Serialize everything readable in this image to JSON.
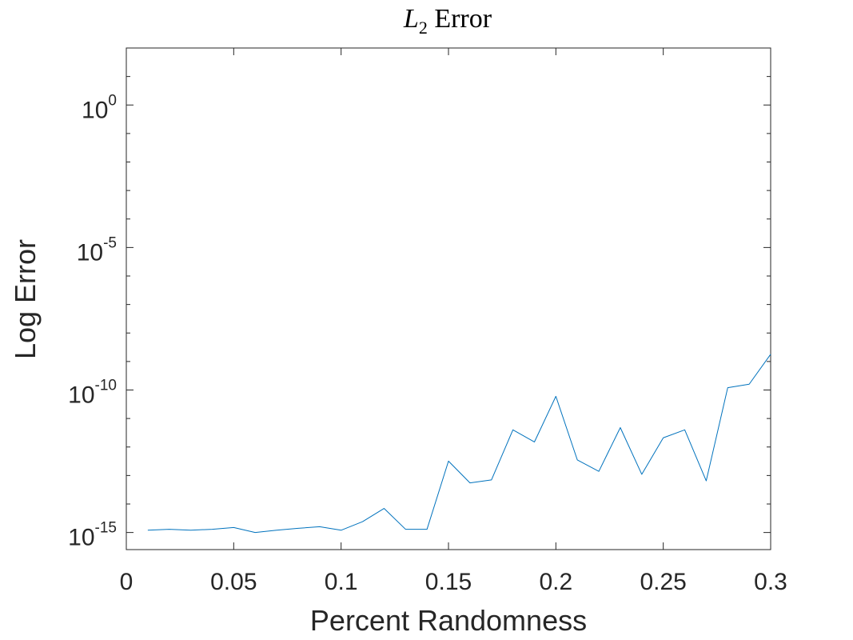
{
  "chart_data": {
    "type": "line",
    "title": "L",
    "title_subscript": "2",
    "title_rest": " Error",
    "xlabel": "Percent Randomness",
    "ylabel": "Log Error",
    "xlim": [
      0,
      0.3
    ],
    "ylim_log10": [
      -15.6,
      2
    ],
    "yscale": "log",
    "grid": false,
    "box": true,
    "x_ticks": [
      {
        "value": 0,
        "label": "0"
      },
      {
        "value": 0.05,
        "label": "0.05"
      },
      {
        "value": 0.1,
        "label": "0.1"
      },
      {
        "value": 0.15,
        "label": "0.15"
      },
      {
        "value": 0.2,
        "label": "0.2"
      },
      {
        "value": 0.25,
        "label": "0.25"
      },
      {
        "value": 0.3,
        "label": "0.3"
      }
    ],
    "y_ticks": [
      {
        "log10": 0,
        "base": "10",
        "exp": "0"
      },
      {
        "log10": -5,
        "base": "10",
        "exp": "-5"
      },
      {
        "log10": -10,
        "base": "10",
        "exp": "-10"
      },
      {
        "log10": -15,
        "base": "10",
        "exp": "-15"
      }
    ],
    "y_minor_ticks_log10": [
      1,
      -1,
      -2,
      -3,
      -4,
      -6,
      -7,
      -8,
      -9,
      -11,
      -12,
      -13,
      -14
    ],
    "series": [
      {
        "color": "#0072BD",
        "x": [
          0.01,
          0.02,
          0.03,
          0.04,
          0.05,
          0.06,
          0.07,
          0.08,
          0.09,
          0.1,
          0.11,
          0.12,
          0.13,
          0.14,
          0.15,
          0.16,
          0.17,
          0.18,
          0.19,
          0.2,
          0.21,
          0.22,
          0.23,
          0.24,
          0.25,
          0.26,
          0.27,
          0.28,
          0.29,
          0.3
        ],
        "y": [
          1.2e-15,
          1.3e-15,
          1.2e-15,
          1.3e-15,
          1.5e-15,
          1e-15,
          1.2e-15,
          1.4e-15,
          1.6e-15,
          1.2e-15,
          2.4e-15,
          7e-15,
          1.3e-15,
          1.3e-15,
          3.2e-13,
          5.5e-14,
          7e-14,
          4e-12,
          1.5e-12,
          6e-11,
          3.5e-13,
          1.4e-13,
          4.8e-12,
          1.1e-13,
          2.1e-12,
          4e-12,
          6.5e-14,
          1.2e-10,
          1.6e-10,
          1.8e-09
        ]
      }
    ]
  }
}
